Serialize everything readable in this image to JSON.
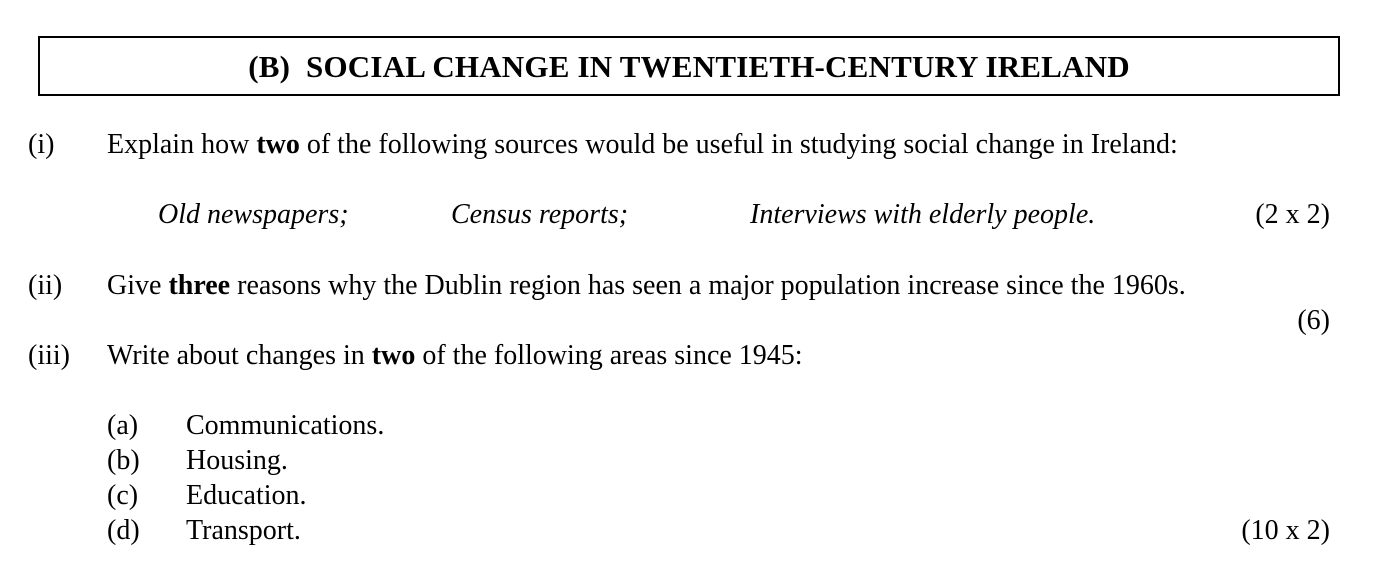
{
  "title": "(B)  SOCIAL CHANGE IN TWENTIETH-CENTURY IRELAND",
  "questions": [
    {
      "number": "(i)",
      "pre": "Explain how ",
      "bold": "two",
      "post": " of the following sources would be useful in studying social change in Ireland:",
      "sources": [
        "Old newspapers;",
        "Census reports;",
        "Interviews with elderly people."
      ],
      "marks": "(2 x 2)"
    },
    {
      "number": "(ii)",
      "pre": "Give ",
      "bold": "three",
      "post": " reasons why the Dublin region has seen a major population increase since the 1960s.",
      "marks": "(6)"
    },
    {
      "number": "(iii)",
      "pre": "Write about changes in ",
      "bold": "two",
      "post": " of the following areas since 1945:",
      "items": [
        {
          "label": "(a)",
          "text": "Communications."
        },
        {
          "label": "(b)",
          "text": "Housing."
        },
        {
          "label": "(c)",
          "text": "Education."
        },
        {
          "label": "(d)",
          "text": "Transport."
        }
      ],
      "marks": "(10 x 2)"
    }
  ]
}
